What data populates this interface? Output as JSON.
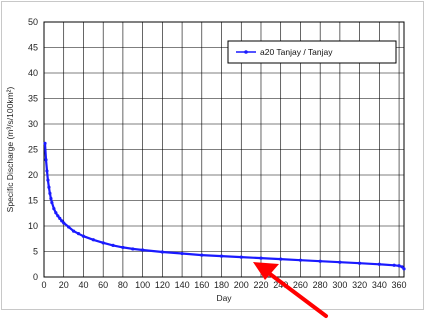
{
  "chart_data": {
    "type": "line",
    "title": "",
    "xlabel": "Day",
    "ylabel": "Specific Discharge (m³/s/100km²)",
    "xlim": [
      0,
      365
    ],
    "ylim": [
      0,
      50
    ],
    "xticks": [
      0,
      20,
      40,
      60,
      80,
      100,
      120,
      140,
      160,
      180,
      200,
      220,
      240,
      260,
      280,
      300,
      320,
      340,
      360
    ],
    "yticks": [
      0,
      5,
      10,
      15,
      20,
      25,
      30,
      35,
      40,
      45,
      50
    ],
    "grid": true,
    "legend_position": "top-right",
    "series": [
      {
        "name": "a20 Tanjay / Tanjay",
        "color": "#1a1aff",
        "marker": "circle",
        "x": [
          1,
          2,
          3,
          4,
          5,
          6,
          7,
          8,
          10,
          12,
          14,
          16,
          18,
          20,
          25,
          30,
          35,
          40,
          50,
          60,
          70,
          80,
          90,
          100,
          120,
          140,
          160,
          180,
          200,
          220,
          240,
          260,
          280,
          300,
          320,
          340,
          355,
          360,
          363,
          365
        ],
        "values": [
          26.2,
          23.0,
          20.8,
          19.0,
          17.6,
          16.4,
          15.4,
          14.6,
          13.4,
          12.6,
          12.0,
          11.5,
          11.0,
          10.6,
          9.8,
          9.0,
          8.5,
          8.0,
          7.3,
          6.7,
          6.2,
          5.8,
          5.5,
          5.3,
          4.9,
          4.6,
          4.3,
          4.1,
          3.9,
          3.7,
          3.5,
          3.3,
          3.1,
          2.9,
          2.7,
          2.5,
          2.3,
          2.2,
          2.0,
          1.6
        ]
      }
    ]
  }
}
